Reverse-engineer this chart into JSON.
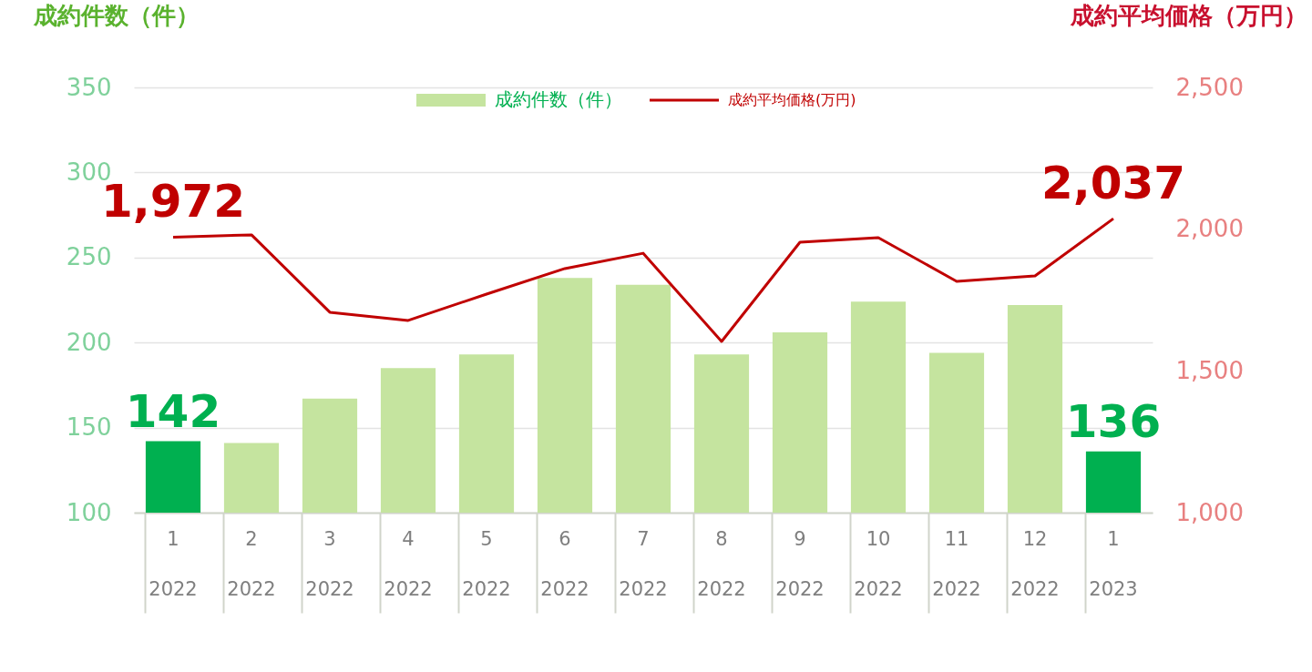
{
  "chart_data": {
    "type": "bar",
    "ylabel": "成約件数（件）",
    "y2label": "成約平均価格（万円）",
    "categories": [
      "1\n2022",
      "2\n2022",
      "3\n2022",
      "4\n2022",
      "5\n2022",
      "6\n2022",
      "7\n2022",
      "8\n2022",
      "9\n2022",
      "10\n2022",
      "11\n2022",
      "12\n2022",
      "1\n2023"
    ],
    "series": [
      {
        "name": "成約件数（件）",
        "color": "#c5e49f",
        "colors": [
          "#00b050",
          "#c5e49f",
          "#c5e49f",
          "#c5e49f",
          "#c5e49f",
          "#c5e49f",
          "#c5e49f",
          "#c5e49f",
          "#c5e49f",
          "#c5e49f",
          "#c5e49f",
          "#c5e49f",
          "#00b050"
        ],
        "values": [
          142,
          141,
          167,
          185,
          193,
          238,
          234,
          193,
          206,
          224,
          194,
          222,
          136
        ],
        "value_labels": [
          "142",
          null,
          null,
          null,
          null,
          null,
          null,
          null,
          null,
          null,
          null,
          null,
          "136"
        ]
      },
      {
        "name": "成約平均価格(万円)",
        "type": "line",
        "axis": "y2",
        "color": "#c00000",
        "values": [
          1972,
          1980,
          1707,
          1678,
          1771,
          1861,
          1915,
          1604,
          1954,
          1970,
          1816,
          1835,
          2037
        ],
        "value_labels": [
          "1,972",
          null,
          null,
          null,
          null,
          null,
          null,
          null,
          null,
          null,
          null,
          null,
          "2,037"
        ]
      }
    ],
    "ylim": [
      100,
      350
    ],
    "yticks": [
      100,
      150,
      200,
      250,
      300,
      350
    ],
    "y2lim": [
      1000,
      2500
    ],
    "y2ticks": [
      {
        "value": 1000,
        "label": "1,000"
      },
      {
        "value": 1500,
        "label": "1,500"
      },
      {
        "value": 2000,
        "label": "2,000"
      },
      {
        "value": 2500,
        "label": "2,500"
      }
    ],
    "grid": "y",
    "legend": "top"
  }
}
